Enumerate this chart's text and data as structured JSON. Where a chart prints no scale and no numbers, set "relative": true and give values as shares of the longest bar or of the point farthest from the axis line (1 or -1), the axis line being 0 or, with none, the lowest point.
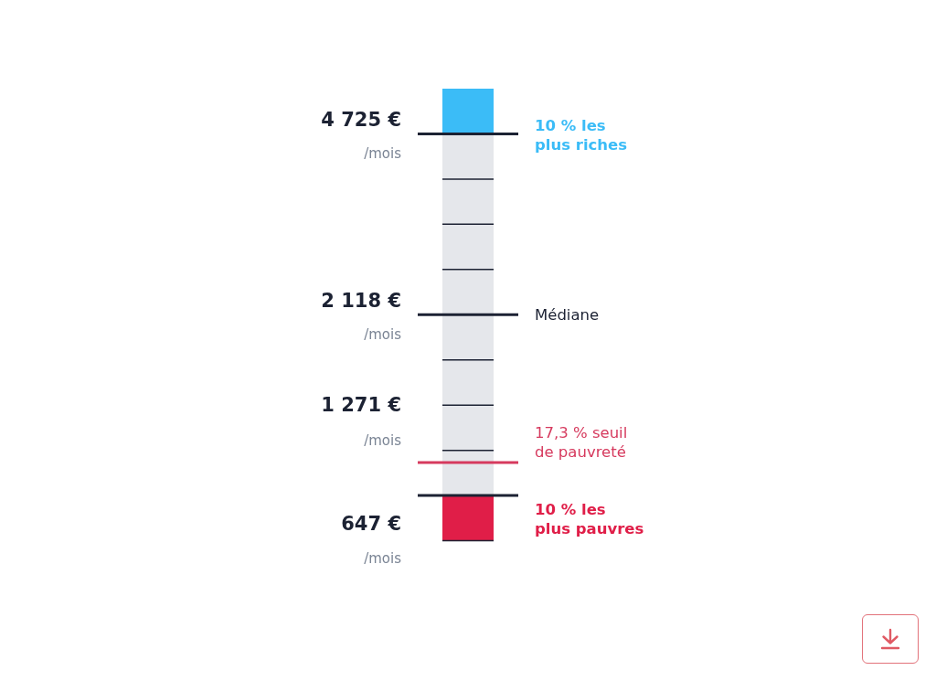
{
  "chart_data": {
    "type": "bar",
    "stacked": true,
    "relative": true,
    "categories": [
      null
    ],
    "series": [
      {
        "name": "10 % les plus pauvres",
        "color": "#e01e48",
        "values": [
          0.1
        ]
      },
      {
        "color": "#e5e7eb",
        "values": [
          0.1
        ]
      },
      {
        "color": "#e5e7eb",
        "values": [
          0.1
        ]
      },
      {
        "color": "#e5e7eb",
        "values": [
          0.1
        ]
      },
      {
        "color": "#e5e7eb",
        "values": [
          0.1
        ]
      },
      {
        "color": "#e5e7eb",
        "values": [
          0.1
        ]
      },
      {
        "color": "#e5e7eb",
        "values": [
          0.1
        ]
      },
      {
        "color": "#e5e7eb",
        "values": [
          0.1
        ]
      },
      {
        "color": "#e5e7eb",
        "values": [
          0.1
        ]
      },
      {
        "name": "10 % les plus riches",
        "color": "#3bbcf7",
        "values": [
          0.1
        ]
      }
    ],
    "ref_lines": [
      {
        "axis": "y",
        "value": 0.9,
        "color": "#1c2233"
      },
      {
        "axis": "y",
        "value": 0.5,
        "label": "Médiane",
        "color": "#1c2233"
      },
      {
        "axis": "y",
        "value": 0.173,
        "label": "17,3 % seuil de pauvreté",
        "color": "#d63a5e"
      },
      {
        "axis": "y",
        "value": 0.1,
        "color": "#1c2233"
      }
    ],
    "annotations": [
      "4 725 €",
      "/mois",
      "2 118 €",
      "/mois",
      "1 271 €",
      "/mois",
      "647 €",
      "/mois"
    ],
    "tick_labels": false
  }
}
